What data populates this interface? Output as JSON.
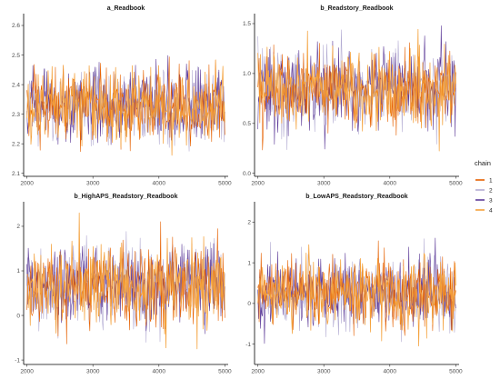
{
  "chart_data": {
    "type": "line",
    "legend": {
      "title": "chain",
      "placement": "right",
      "entries": [
        {
          "label": "1",
          "color": "#e66101"
        },
        {
          "label": "2",
          "color": "#b2abd2"
        },
        {
          "label": "3",
          "color": "#5e3c99"
        },
        {
          "label": "4",
          "color": "#f4a13b"
        }
      ]
    },
    "draw_order": [
      "2",
      "3",
      "1",
      "4"
    ],
    "x_range": [
      2000,
      5000
    ],
    "panels": [
      {
        "title": "a_Readbook",
        "xlim": [
          1950,
          5050
        ],
        "ylim": [
          2.09,
          2.64
        ],
        "x_ticks": [
          {
            "value": 2000,
            "label": "2000"
          },
          {
            "value": 3000,
            "label": "3000"
          },
          {
            "value": 4000,
            "label": "4000"
          },
          {
            "value": 5000,
            "label": "5000"
          }
        ],
        "y_ticks": [
          {
            "value": 2.1,
            "label": "2.1"
          },
          {
            "value": 2.2,
            "label": "2.2"
          },
          {
            "value": 2.3,
            "label": "2.3"
          },
          {
            "value": 2.4,
            "label": "2.4"
          },
          {
            "value": 2.5,
            "label": "2.5"
          },
          {
            "value": 2.6,
            "label": "2.6"
          }
        ],
        "trace": {
          "mean": 2.33,
          "sd": 0.06,
          "min": 2.11,
          "max": 2.62
        }
      },
      {
        "title": "b_Readstory_Readbook",
        "xlim": [
          1950,
          5050
        ],
        "ylim": [
          -0.03,
          1.6
        ],
        "x_ticks": [
          {
            "value": 2000,
            "label": "2000"
          },
          {
            "value": 3000,
            "label": "3000"
          },
          {
            "value": 4000,
            "label": "4000"
          },
          {
            "value": 5000,
            "label": "5000"
          }
        ],
        "y_ticks": [
          {
            "value": 0.0,
            "label": "0.0"
          },
          {
            "value": 0.5,
            "label": "0.5"
          },
          {
            "value": 1.0,
            "label": "1.0"
          },
          {
            "value": 1.5,
            "label": "1.5"
          }
        ],
        "trace": {
          "mean": 0.85,
          "sd": 0.2,
          "min": 0.03,
          "max": 1.52
        }
      },
      {
        "title": "b_HighAPS_Readstory_Readbook",
        "xlim": [
          1950,
          5050
        ],
        "ylim": [
          -1.1,
          2.55
        ],
        "x_ticks": [
          {
            "value": 2000,
            "label": "2000"
          },
          {
            "value": 3000,
            "label": "3000"
          },
          {
            "value": 4000,
            "label": "4000"
          },
          {
            "value": 5000,
            "label": "5000"
          }
        ],
        "y_ticks": [
          {
            "value": -1,
            "label": "-1"
          },
          {
            "value": 0,
            "label": "0"
          },
          {
            "value": 1,
            "label": "1"
          },
          {
            "value": 2,
            "label": "2"
          }
        ],
        "trace": {
          "mean": 0.68,
          "sd": 0.45,
          "min": -1.0,
          "max": 2.45
        }
      },
      {
        "title": "b_LowAPS_Readstory_Readbook",
        "xlim": [
          1950,
          5050
        ],
        "ylim": [
          -1.5,
          2.5
        ],
        "x_ticks": [
          {
            "value": 2000,
            "label": "2000"
          },
          {
            "value": 3000,
            "label": "3000"
          },
          {
            "value": 4000,
            "label": "4000"
          },
          {
            "value": 5000,
            "label": "5000"
          }
        ],
        "y_ticks": [
          {
            "value": -1,
            "label": "-1"
          },
          {
            "value": 0,
            "label": "0"
          },
          {
            "value": 1,
            "label": "1"
          },
          {
            "value": 2,
            "label": "2"
          }
        ],
        "trace": {
          "mean": 0.25,
          "sd": 0.42,
          "min": -1.3,
          "max": 2.3
        }
      }
    ]
  }
}
